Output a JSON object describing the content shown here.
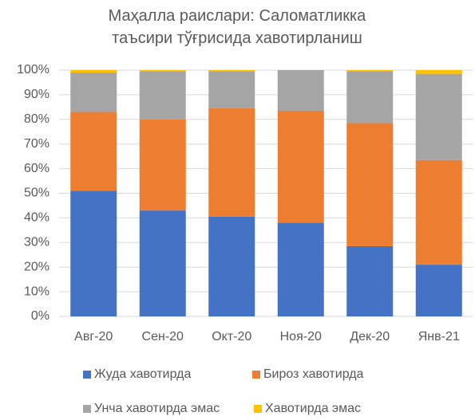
{
  "chart_data": {
    "type": "stacked_bar",
    "title": "Маҳалла раислари: Саломатликка таъсири тўғрисида хавотирланиш",
    "categories": [
      "Авг-20",
      "Сен-20",
      "Окт-20",
      "Ноя-20",
      "Дек-20",
      "Янв-21"
    ],
    "series": [
      {
        "name": "Жуда хавотирда",
        "color": "#4472c4",
        "values": [
          51,
          43,
          40.5,
          38,
          28.5,
          21
        ]
      },
      {
        "name": "Бироз хавотирда",
        "color": "#ed7d31",
        "values": [
          32,
          37,
          44,
          45.5,
          50,
          42.5
        ]
      },
      {
        "name": "Унча хавотирда эмас",
        "color": "#a5a5a5",
        "values": [
          16,
          19.5,
          15,
          16.5,
          21,
          35
        ]
      },
      {
        "name": "Хавотирда эмас",
        "color": "#ffc000",
        "values": [
          1,
          0.5,
          0.5,
          0,
          0.5,
          1.5
        ]
      }
    ],
    "ylim": [
      0,
      100
    ],
    "yticks": [
      {
        "value": 0,
        "label": "0%"
      },
      {
        "value": 10,
        "label": "10%"
      },
      {
        "value": 20,
        "label": "20%"
      },
      {
        "value": 30,
        "label": "30%"
      },
      {
        "value": 40,
        "label": "40%"
      },
      {
        "value": 50,
        "label": "50%"
      },
      {
        "value": 60,
        "label": "60%"
      },
      {
        "value": 70,
        "label": "70%"
      },
      {
        "value": 80,
        "label": "80%"
      },
      {
        "value": 90,
        "label": "90%"
      },
      {
        "value": 100,
        "label": "100%"
      }
    ],
    "grid": true,
    "legend": "bottom"
  }
}
